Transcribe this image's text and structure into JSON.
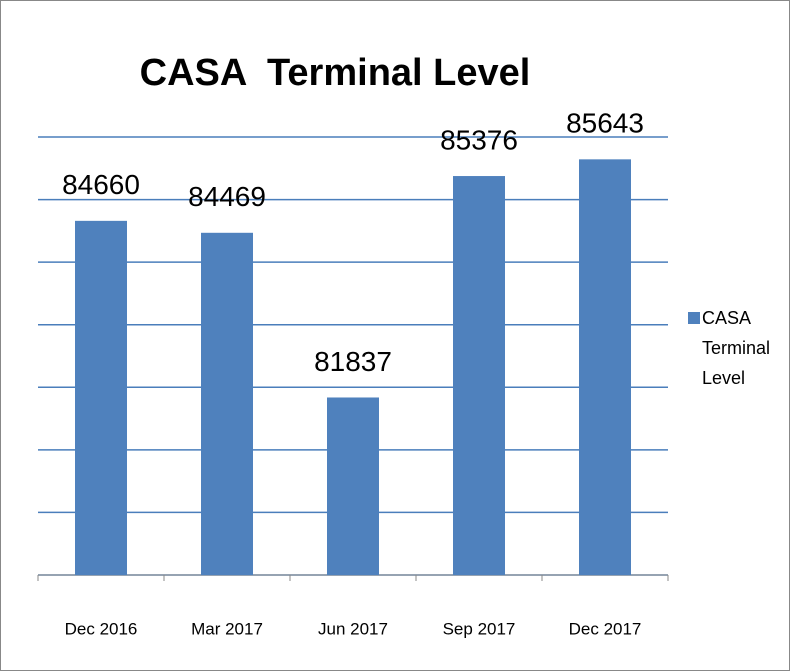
{
  "chart_data": {
    "type": "bar",
    "title": "CASA  Terminal Level",
    "categories": [
      "Dec 2016",
      "Mar 2017",
      "Jun 2017",
      "Sep 2017",
      "Dec 2017"
    ],
    "series": [
      {
        "name": "CASA Terminal Level",
        "color": "#4f81bd",
        "values": [
          84660,
          84469,
          81837,
          85376,
          85643
        ]
      }
    ],
    "ylim": [
      79000,
      86000
    ],
    "yticks": [
      79000,
      80000,
      81000,
      82000,
      83000,
      84000,
      85000,
      86000
    ],
    "grid": true,
    "legend": "right"
  }
}
